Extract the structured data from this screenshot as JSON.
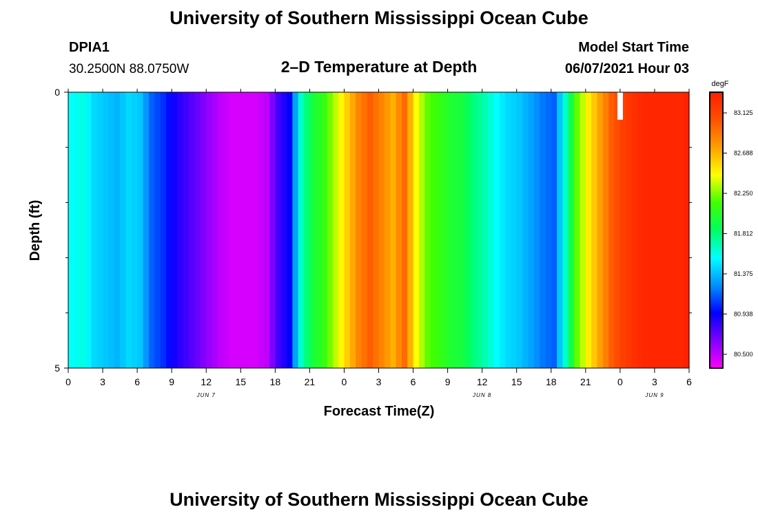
{
  "header": {
    "title": "University of Southern Mississippi Ocean Cube",
    "station": "DPIA1",
    "coords": "30.2500N  88.0750W",
    "subtitle": "2–D Temperature at Depth",
    "model_start_label": "Model Start Time",
    "model_start_value": "06/07/2021 Hour 03"
  },
  "footer": {
    "title": "University of Southern Mississippi Ocean Cube"
  },
  "chart_data": {
    "type": "heatmap",
    "title": "2–D Temperature at Depth",
    "xlabel": "Forecast Time(Z)",
    "ylabel": "Depth (ft)",
    "x_unit": "hours since Jun 7 00Z",
    "xlim": [
      0,
      54
    ],
    "ylim": [
      0,
      5
    ],
    "y_inverted": true,
    "x_ticks": [
      {
        "x": 0,
        "label": "0"
      },
      {
        "x": 3,
        "label": "3"
      },
      {
        "x": 6,
        "label": "6"
      },
      {
        "x": 9,
        "label": "9"
      },
      {
        "x": 12,
        "label": "12"
      },
      {
        "x": 15,
        "label": "15"
      },
      {
        "x": 18,
        "label": "18"
      },
      {
        "x": 21,
        "label": "21"
      },
      {
        "x": 24,
        "label": "0"
      },
      {
        "x": 27,
        "label": "3"
      },
      {
        "x": 30,
        "label": "6"
      },
      {
        "x": 33,
        "label": "9"
      },
      {
        "x": 36,
        "label": "12"
      },
      {
        "x": 39,
        "label": "15"
      },
      {
        "x": 42,
        "label": "18"
      },
      {
        "x": 45,
        "label": "21"
      },
      {
        "x": 48,
        "label": "0"
      },
      {
        "x": 51,
        "label": "3"
      },
      {
        "x": 54,
        "label": "6"
      }
    ],
    "date_labels": [
      {
        "x": 12,
        "label": "JUN 7"
      },
      {
        "x": 36,
        "label": "JUN 8"
      },
      {
        "x": 51,
        "label": "JUN 9"
      }
    ],
    "y_ticks": [
      {
        "y": 0,
        "label": "0"
      },
      {
        "y": 5,
        "label": "5"
      }
    ],
    "y_minor_ticks": [
      1,
      2,
      3,
      4
    ],
    "grid": false,
    "marker": {
      "x": 48,
      "depth_from": 0,
      "depth_to": 0.5,
      "color": "#ffffff"
    },
    "colorbar": {
      "unit": "degF",
      "min": 80.35,
      "max": 83.35,
      "ticks": [
        "80.500",
        "80.938",
        "81.375",
        "81.812",
        "82.250",
        "82.688",
        "83.125"
      ],
      "tick_values": [
        80.5,
        80.938,
        81.375,
        81.812,
        82.25,
        82.688,
        83.125
      ],
      "colormap": [
        "#ff00ff",
        "#8000ff",
        "#0000ff",
        "#0090ff",
        "#00ffff",
        "#00ff60",
        "#40ff00",
        "#ffff00",
        "#ffa000",
        "#ff5000",
        "#ff1e00"
      ]
    },
    "time_step_hours": 1,
    "depth_levels": [
      0,
      1,
      2,
      3,
      4,
      5
    ],
    "temperature_by_hour": [
      81.55,
      81.6,
      81.45,
      81.4,
      81.35,
      81.45,
      81.4,
      81.15,
      81.05,
      80.9,
      80.8,
      80.7,
      80.6,
      80.5,
      80.45,
      80.45,
      80.45,
      80.5,
      80.8,
      80.95,
      81.65,
      81.95,
      82.1,
      82.35,
      82.6,
      82.85,
      83.0,
      82.85,
      82.7,
      82.95,
      82.45,
      82.2,
      82.1,
      82.0,
      81.95,
      81.8,
      81.7,
      81.55,
      81.45,
      81.4,
      81.3,
      81.2,
      81.15,
      81.65,
      82.2,
      82.5,
      82.75,
      83.0,
      83.15,
      83.25,
      83.3,
      83.3,
      83.3,
      83.3,
      83.35
    ]
  }
}
